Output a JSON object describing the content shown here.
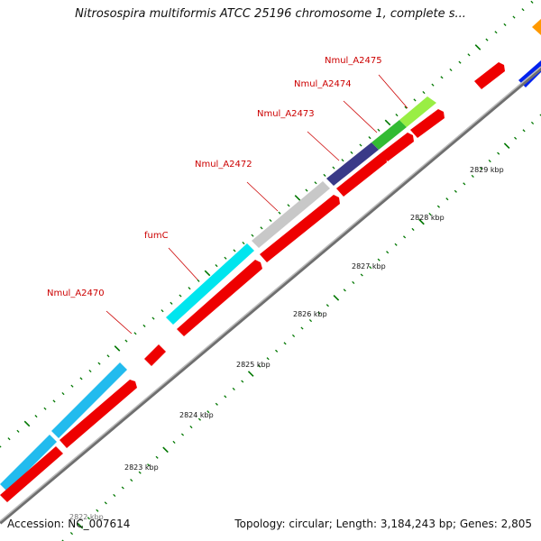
{
  "title": "Nitrosospira multiformis ATCC 25196 chromosome 1, complete s...",
  "footer": {
    "accession": "Accession: NC_007614",
    "summary": "Topology: circular; Length: 3,184,243 bp; Genes: 2,805"
  },
  "colors": {
    "backbone": "#999999",
    "cds": "#ee0000",
    "tick_minor": "#007700",
    "label": "#cc0000",
    "cyan_gene": "#00e5ee",
    "sky_gene": "#22bbee",
    "gray_gene": "#c8c8c8",
    "navy_gene": "#3a3a88",
    "green_gene": "#33bb33",
    "lightgreen_gene": "#99ee44",
    "blue_gene": "#0022ee",
    "orange_gene": "#ff9900"
  },
  "ticks": [
    {
      "label": "2823 kbp"
    },
    {
      "label": "2824 kbp"
    },
    {
      "label": "2825 kbp"
    },
    {
      "label": "2826 kbp"
    },
    {
      "label": "2827 kbp"
    },
    {
      "label": "2828 kbp"
    },
    {
      "label": "2829 kbp"
    }
  ],
  "faded_tick": {
    "label": "2822 kbp"
  },
  "gene_labels": [
    {
      "text": "Nmul_A2470"
    },
    {
      "text": "fumC"
    },
    {
      "text": "Nmul_A2472"
    },
    {
      "text": "Nmul_A2473"
    },
    {
      "text": "Nmul_A2474"
    },
    {
      "text": "Nmul_A2475"
    }
  ]
}
